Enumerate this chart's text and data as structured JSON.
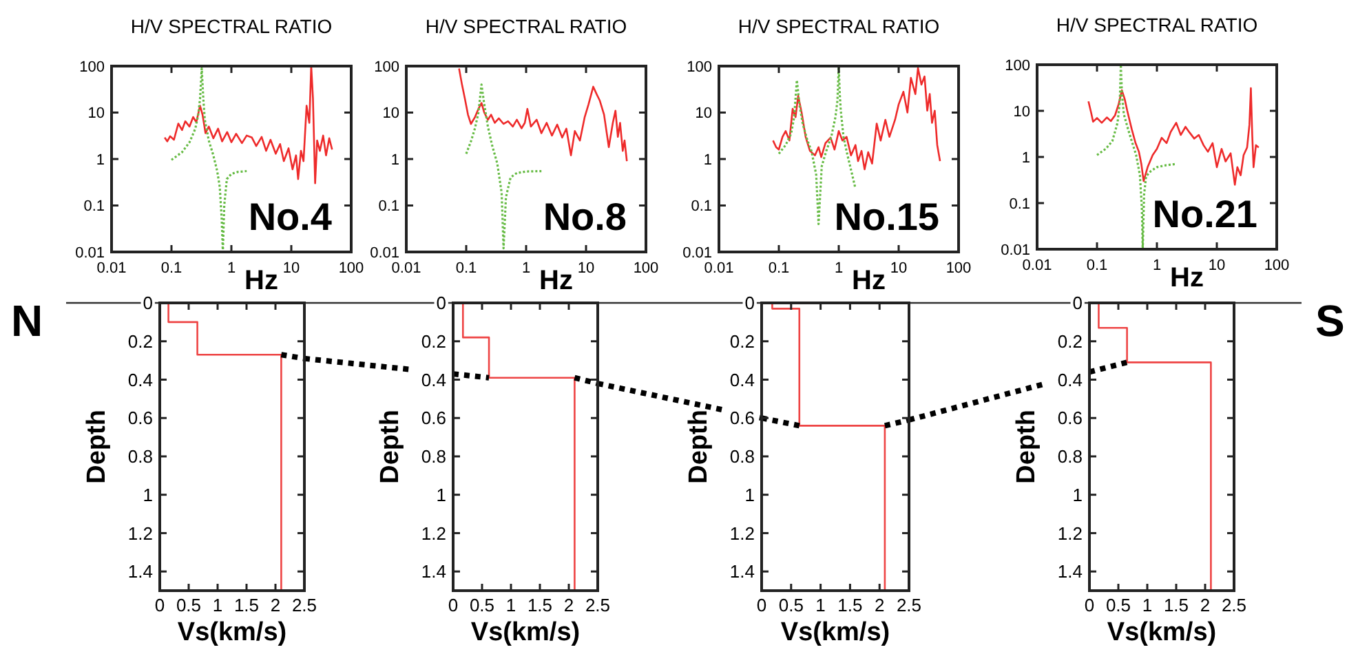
{
  "chart_data": [
    {
      "type": "line",
      "title": "H/V SPECTRAL RATIO",
      "xlabel": "Hz",
      "log": "xy",
      "xlim": [
        0.01,
        100
      ],
      "ylim": [
        0.01,
        100
      ],
      "xticks": [
        0.01,
        0.1,
        1,
        10,
        100
      ],
      "yticks": [
        0.01,
        0.1,
        1,
        10,
        100
      ],
      "annotations": [
        "No.4"
      ],
      "series": [
        {
          "color": "#ee2a2a",
          "x": [
            0.077,
            0.085,
            0.095,
            0.11,
            0.13,
            0.15,
            0.17,
            0.2,
            0.23,
            0.26,
            0.3,
            0.33,
            0.37,
            0.42,
            0.5,
            0.6,
            0.7,
            0.85,
            1,
            1.2,
            1.5,
            1.8,
            2.2,
            2.6,
            3.2,
            3.8,
            4.5,
            5.5,
            6.5,
            7.5,
            9,
            10.5,
            12,
            13,
            14.5,
            16,
            18,
            20,
            21.5,
            23,
            25,
            27,
            30,
            34,
            38,
            43,
            48
          ],
          "values": [
            2.9,
            2.4,
            3.1,
            2.6,
            5.8,
            4.2,
            6.5,
            5,
            8,
            6.2,
            14,
            9,
            3.6,
            5,
            2.8,
            4.5,
            2.4,
            3.8,
            2.3,
            3.5,
            2.2,
            3.2,
            2.9,
            1.9,
            3,
            1.5,
            2.6,
            1.3,
            2.1,
            0.9,
            1.7,
            0.6,
            1.2,
            0.37,
            1.5,
            0.9,
            14,
            6,
            100,
            20,
            0.3,
            2.5,
            1.5,
            3.2,
            1.2,
            2.8,
            1.6
          ]
        },
        {
          "color": "#66bb44",
          "line_style": "dotted",
          "x": [
            0.1,
            0.15,
            0.2,
            0.25,
            0.28,
            0.3,
            0.32,
            0.34,
            0.36,
            0.42,
            0.5,
            0.58,
            0.64,
            0.69,
            0.72,
            0.76,
            0.84,
            1,
            1.3,
            1.8
          ],
          "values": [
            0.96,
            1.4,
            2.3,
            4.5,
            9.1,
            20,
            89,
            20,
            7,
            2.5,
            1.2,
            0.55,
            0.25,
            0.05,
            0.01,
            0.1,
            0.37,
            0.48,
            0.53,
            0.55
          ]
        }
      ]
    },
    {
      "type": "line",
      "title": "H/V SPECTRAL RATIO",
      "xlabel": "Hz",
      "log": "xy",
      "xlim": [
        0.01,
        100
      ],
      "ylim": [
        0.01,
        100
      ],
      "xticks": [
        0.01,
        0.1,
        1,
        10,
        100
      ],
      "yticks": [
        0.01,
        0.1,
        1,
        10,
        100
      ],
      "annotations": [
        "No.8"
      ],
      "series": [
        {
          "color": "#ee2a2a",
          "x": [
            0.076,
            0.085,
            0.095,
            0.107,
            0.12,
            0.14,
            0.16,
            0.18,
            0.2,
            0.23,
            0.26,
            0.3,
            0.35,
            0.42,
            0.5,
            0.6,
            0.7,
            0.84,
            0.95,
            1.05,
            1.2,
            1.5,
            1.8,
            2.2,
            2.7,
            3.3,
            4,
            4.7,
            5.6,
            6.5,
            7.9,
            9.5,
            11,
            13.2,
            15,
            17,
            20,
            24,
            28,
            31,
            34,
            37,
            41,
            44,
            48
          ],
          "values": [
            89,
            40,
            20,
            9,
            5.7,
            8,
            12,
            16,
            10,
            7,
            9,
            6,
            7.5,
            5.7,
            6.5,
            5,
            7,
            4.6,
            6,
            12,
            5,
            7,
            3.6,
            6,
            3.2,
            5.5,
            2.9,
            4.5,
            1.2,
            4,
            2.5,
            8,
            15,
            36,
            25,
            18,
            9,
            1.8,
            6,
            11,
            3,
            6,
            1.5,
            2.5,
            0.9
          ]
        },
        {
          "color": "#66bb44",
          "line_style": "dotted",
          "x": [
            0.1,
            0.12,
            0.14,
            0.16,
            0.18,
            0.2,
            0.23,
            0.27,
            0.33,
            0.39,
            0.42,
            0.46,
            0.55,
            0.7,
            1,
            1.8
          ],
          "values": [
            1.3,
            2.4,
            4.6,
            10,
            40,
            15,
            5,
            2,
            0.8,
            0.19,
            0.012,
            0.15,
            0.4,
            0.5,
            0.54,
            0.55
          ]
        }
      ]
    },
    {
      "type": "line",
      "title": "H/V SPECTRAL RATIO",
      "xlabel": "Hz",
      "log": "xy",
      "xlim": [
        0.01,
        100
      ],
      "ylim": [
        0.01,
        100
      ],
      "xticks": [
        0.01,
        0.1,
        1,
        10,
        100
      ],
      "yticks": [
        0.01,
        0.1,
        1,
        10,
        100
      ],
      "annotations": [
        "No.15"
      ],
      "series": [
        {
          "color": "#ee2a2a",
          "x": [
            0.08,
            0.09,
            0.1,
            0.115,
            0.13,
            0.15,
            0.17,
            0.19,
            0.21,
            0.24,
            0.28,
            0.33,
            0.4,
            0.46,
            0.51,
            0.6,
            0.73,
            0.85,
            1,
            1.15,
            1.35,
            1.6,
            1.9,
            2.1,
            2.4,
            2.7,
            3.1,
            3.6,
            4.3,
            5,
            6,
            7,
            8.7,
            10,
            12,
            14,
            16,
            19,
            21,
            24,
            27,
            30,
            33,
            36,
            40,
            44,
            49
          ],
          "values": [
            2.5,
            1.8,
            1.6,
            3,
            4,
            2.5,
            12,
            8,
            23,
            10,
            3,
            1.5,
            1.2,
            1.8,
            1.1,
            2.2,
            2.9,
            1.6,
            4,
            2.5,
            3,
            1.2,
            2,
            0.9,
            1.5,
            0.6,
            1.4,
            0.8,
            5.8,
            2.5,
            7,
            3,
            7,
            15,
            28,
            10,
            56,
            25,
            90,
            40,
            60,
            11,
            25,
            6,
            11,
            2,
            0.9
          ]
        },
        {
          "color": "#66bb44",
          "line_style": "dotted",
          "x": [
            0.1,
            0.13,
            0.16,
            0.18,
            0.2,
            0.22,
            0.25,
            0.3,
            0.35,
            0.42,
            0.46,
            0.52,
            0.62,
            0.75,
            0.88,
            0.95,
            1,
            1.04,
            1.08,
            1.2,
            1.4,
            1.65,
            1.9
          ],
          "values": [
            1.3,
            2,
            3.5,
            8,
            50,
            15,
            5.8,
            2.5,
            1.5,
            0.46,
            0.04,
            0.7,
            1.5,
            3,
            8,
            18,
            100,
            25,
            11,
            3,
            1.2,
            0.5,
            0.23
          ]
        }
      ]
    },
    {
      "type": "line",
      "title": "H/V SPECTRAL RATIO",
      "xlabel": "Hz",
      "log": "xy",
      "xlim": [
        0.01,
        100
      ],
      "ylim": [
        0.01,
        100
      ],
      "xticks": [
        0.01,
        0.1,
        1,
        10,
        100
      ],
      "yticks": [
        0.01,
        0.1,
        1,
        10,
        100
      ],
      "annotations": [
        "No.21"
      ],
      "series": [
        {
          "color": "#ee2a2a",
          "x": [
            0.072,
            0.08,
            0.086,
            0.1,
            0.12,
            0.146,
            0.17,
            0.2,
            0.23,
            0.26,
            0.29,
            0.32,
            0.38,
            0.44,
            0.5,
            0.55,
            0.6,
            0.7,
            0.85,
            1,
            1.2,
            1.45,
            1.7,
            2.1,
            2.5,
            3,
            3.5,
            4.2,
            5,
            6,
            7.1,
            8.5,
            10,
            12,
            14,
            17,
            20,
            22,
            25,
            28,
            32,
            35,
            37,
            39,
            41,
            45,
            50
          ],
          "values": [
            16,
            9,
            5.8,
            7,
            5.5,
            7.2,
            6,
            8,
            14,
            28,
            18,
            10,
            4,
            2,
            1.3,
            0.7,
            0.3,
            0.6,
            1.1,
            1.5,
            2.6,
            2,
            3.5,
            5.5,
            3,
            4.5,
            3.4,
            2.5,
            3,
            1.8,
            1.3,
            2,
            0.6,
            1.5,
            0.8,
            1.2,
            0.25,
            0.6,
            0.4,
            1.1,
            1.6,
            5,
            31,
            3,
            0.6,
            1.8,
            1.6
          ]
        },
        {
          "color": "#66bb44",
          "line_style": "dotted",
          "x": [
            0.1,
            0.14,
            0.18,
            0.22,
            0.24,
            0.25,
            0.26,
            0.28,
            0.33,
            0.38,
            0.45,
            0.52,
            0.56,
            0.58,
            0.61,
            0.66,
            0.8,
            1,
            1.4,
            2
          ],
          "values": [
            1.1,
            1.5,
            2.2,
            5.5,
            15,
            100,
            25,
            8.5,
            4,
            2.2,
            1.1,
            0.4,
            0.08,
            0.01,
            0.15,
            0.38,
            0.5,
            0.6,
            0.66,
            0.7
          ]
        }
      ]
    },
    {
      "type": "line",
      "xlabel": "Vs(km/s)",
      "ylabel": "Depth",
      "xlim": [
        0,
        2.5
      ],
      "ylim": [
        1.5,
        0
      ],
      "xticks": [
        0,
        0.5,
        1,
        1.5,
        2,
        2.5
      ],
      "yticks": [
        0,
        0.2,
        0.4,
        0.6,
        0.8,
        1,
        1.2,
        1.4
      ],
      "annotations": [
        "N"
      ],
      "series": [
        {
          "color": "#ee4444",
          "x": [
            0.15,
            0.15,
            0.65,
            0.65,
            2.1,
            2.1
          ],
          "values": [
            0,
            0.1,
            0.1,
            0.27,
            0.27,
            1.5
          ]
        },
        {
          "color": "#000000",
          "line_style": "dashed",
          "x": [
            2.1,
            2.5
          ],
          "values": [
            0.27,
            0.29
          ]
        }
      ]
    },
    {
      "type": "line",
      "xlabel": "Vs(km/s)",
      "ylabel": "Depth",
      "xlim": [
        0,
        2.5
      ],
      "ylim": [
        1.5,
        0
      ],
      "xticks": [
        0,
        0.5,
        1,
        1.5,
        2,
        2.5
      ],
      "yticks": [
        0,
        0.2,
        0.4,
        0.6,
        0.8,
        1,
        1.2,
        1.4
      ],
      "series": [
        {
          "color": "#ee4444",
          "x": [
            0.17,
            0.17,
            0.62,
            0.62,
            2.1,
            2.1
          ],
          "values": [
            0,
            0.18,
            0.18,
            0.39,
            0.39,
            1.5
          ]
        },
        {
          "color": "#000000",
          "line_style": "dashed",
          "x": [
            0,
            0.62
          ],
          "values": [
            0.37,
            0.39
          ]
        },
        {
          "color": "#000000",
          "line_style": "dashed",
          "x": [
            2.1,
            2.5
          ],
          "values": [
            0.39,
            0.42
          ]
        }
      ]
    },
    {
      "type": "line",
      "xlabel": "Vs(km/s)",
      "ylabel": "Depth",
      "xlim": [
        0,
        2.5
      ],
      "ylim": [
        1.5,
        0
      ],
      "xticks": [
        0,
        0.5,
        1,
        1.5,
        2,
        2.5
      ],
      "yticks": [
        0,
        0.2,
        0.4,
        0.6,
        0.8,
        1,
        1.2,
        1.4
      ],
      "series": [
        {
          "color": "#ee4444",
          "x": [
            0.18,
            0.18,
            0.64,
            0.64,
            2.09,
            2.09
          ],
          "values": [
            0,
            0.03,
            0.03,
            0.64,
            0.64,
            1.5
          ]
        },
        {
          "color": "#000000",
          "line_style": "dashed",
          "x": [
            0,
            0.64
          ],
          "values": [
            0.6,
            0.64
          ]
        },
        {
          "color": "#000000",
          "line_style": "dashed",
          "x": [
            2.09,
            2.5
          ],
          "values": [
            0.64,
            0.61
          ]
        }
      ]
    },
    {
      "type": "line",
      "xlabel": "Vs(km/s)",
      "ylabel": "Depth",
      "xlim": [
        0,
        2.5
      ],
      "ylim": [
        1.5,
        0
      ],
      "xticks": [
        0,
        0.5,
        1,
        1.5,
        2,
        2.5
      ],
      "yticks": [
        0,
        0.2,
        0.4,
        0.6,
        0.8,
        1,
        1.2,
        1.4
      ],
      "annotations": [
        "S"
      ],
      "series": [
        {
          "color": "#ee4444",
          "x": [
            0.16,
            0.16,
            0.65,
            0.65,
            2.1,
            2.1
          ],
          "values": [
            0,
            0.13,
            0.13,
            0.31,
            0.31,
            1.5
          ]
        },
        {
          "color": "#000000",
          "line_style": "dashed",
          "x": [
            0,
            0.65
          ],
          "values": [
            0.36,
            0.31
          ]
        }
      ]
    }
  ]
}
